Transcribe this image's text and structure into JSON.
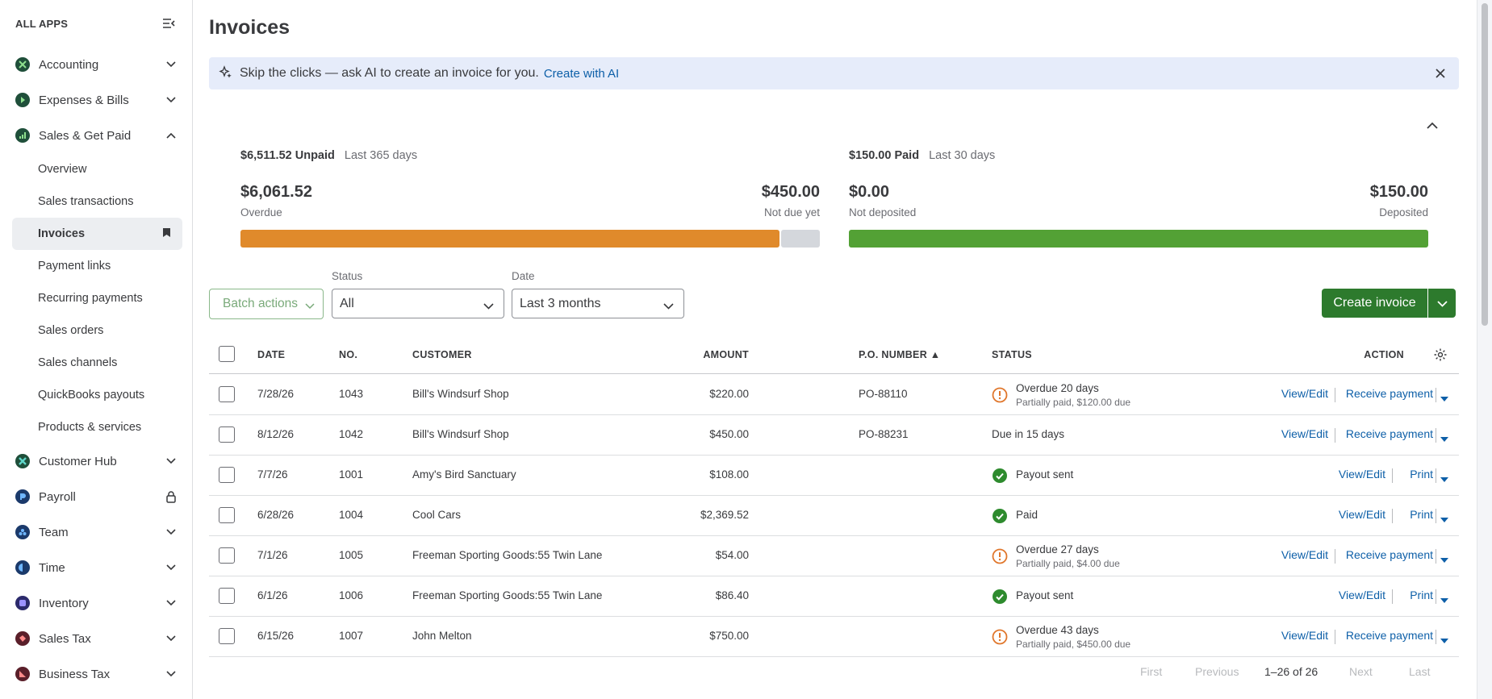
{
  "sidebar": {
    "title": "ALL APPS",
    "apps": [
      {
        "label": "Accounting",
        "icon": "accounting-icon",
        "color": "#2ca01c"
      },
      {
        "label": "Expenses & Bills",
        "icon": "expenses-icon",
        "color": "#2ca01c"
      },
      {
        "label": "Sales & Get Paid",
        "icon": "sales-icon",
        "color": "#2ca01c"
      }
    ],
    "sub_items": [
      "Overview",
      "Sales transactions",
      "Invoices",
      "Payment links",
      "Recurring payments",
      "Sales orders",
      "Sales channels",
      "QuickBooks payouts",
      "Products & services"
    ],
    "apps_after": [
      {
        "label": "Customer Hub",
        "icon": "customer-hub-icon",
        "color": "#13a89e"
      },
      {
        "label": "Payroll",
        "icon": "payroll-icon",
        "color": "#0077c5"
      },
      {
        "label": "Team",
        "icon": "team-icon",
        "color": "#0077c5"
      },
      {
        "label": "Time",
        "icon": "time-icon",
        "color": "#0077c5"
      },
      {
        "label": "Inventory",
        "icon": "inventory-icon",
        "color": "#5a4fcf"
      },
      {
        "label": "Sales Tax",
        "icon": "sales-tax-icon",
        "color": "#d52b1e"
      },
      {
        "label": "Business Tax",
        "icon": "business-tax-icon",
        "color": "#d52b1e"
      }
    ]
  },
  "page": {
    "title": "Invoices",
    "ai_banner": {
      "text": "Skip the clicks — ask AI to create an invoice for you.",
      "link": "Create with AI"
    }
  },
  "summary": {
    "unpaid": {
      "amount": "$6,511.52 Unpaid",
      "period": "Last 365 days",
      "overdue_amount": "$6,061.52",
      "overdue_label": "Overdue",
      "not_due_amount": "$450.00",
      "not_due_label": "Not due yet",
      "overdue_fraction": 0.931
    },
    "paid": {
      "amount": "$150.00 Paid",
      "period": "Last 30 days",
      "not_deposited_amount": "$0.00",
      "not_deposited_label": "Not deposited",
      "deposited_amount": "$150.00",
      "deposited_label": "Deposited",
      "deposited_fraction": 1.0
    },
    "colors": {
      "overdue": "#e08a2b",
      "not_due": "#d4d7dc",
      "deposited": "#53a135"
    }
  },
  "filters": {
    "batch_label": "Batch actions",
    "status_label": "Status",
    "status_value": "All",
    "date_label": "Date",
    "date_value": "Last 3 months",
    "create_label": "Create invoice"
  },
  "table": {
    "headers": {
      "date": "DATE",
      "no": "NO.",
      "customer": "CUSTOMER",
      "amount": "AMOUNT",
      "po": "P.O. NUMBER ▲",
      "status": "STATUS",
      "action": "ACTION"
    },
    "rows": [
      {
        "date": "7/28/26",
        "no": "1043",
        "customer": "Bill's Windsurf Shop",
        "amount": "$220.00",
        "po": "PO-88110",
        "status": "Overdue 20 days",
        "status_sub": "Partially paid, $120.00 due",
        "status_icon": "warning",
        "action1": "View/Edit",
        "action2": "Receive payment"
      },
      {
        "date": "8/12/26",
        "no": "1042",
        "customer": "Bill's Windsurf Shop",
        "amount": "$450.00",
        "po": "PO-88231",
        "status": "Due in 15 days",
        "status_sub": "",
        "status_icon": "none",
        "action1": "View/Edit",
        "action2": "Receive payment"
      },
      {
        "date": "7/7/26",
        "no": "1001",
        "customer": "Amy's Bird Sanctuary",
        "amount": "$108.00",
        "po": "",
        "status": "Payout sent",
        "status_sub": "",
        "status_icon": "check",
        "action1": "View/Edit",
        "action2": "Print"
      },
      {
        "date": "6/28/26",
        "no": "1004",
        "customer": "Cool Cars",
        "amount": "$2,369.52",
        "po": "",
        "status": "Paid",
        "status_sub": "",
        "status_icon": "check",
        "action1": "View/Edit",
        "action2": "Print"
      },
      {
        "date": "7/1/26",
        "no": "1005",
        "customer": "Freeman Sporting Goods:55 Twin Lane",
        "amount": "$54.00",
        "po": "",
        "status": "Overdue 27 days",
        "status_sub": "Partially paid, $4.00 due",
        "status_icon": "warning",
        "action1": "View/Edit",
        "action2": "Receive payment"
      },
      {
        "date": "6/1/26",
        "no": "1006",
        "customer": "Freeman Sporting Goods:55 Twin Lane",
        "amount": "$86.40",
        "po": "",
        "status": "Payout sent",
        "status_sub": "",
        "status_icon": "check",
        "action1": "View/Edit",
        "action2": "Print"
      },
      {
        "date": "6/15/26",
        "no": "1007",
        "customer": "John Melton",
        "amount": "$750.00",
        "po": "",
        "status": "Overdue 43 days",
        "status_sub": "Partially paid, $450.00 due",
        "status_icon": "warning",
        "action1": "View/Edit",
        "action2": "Receive payment"
      }
    ]
  },
  "pagination": {
    "first": "First",
    "previous": "Previous",
    "count": "1–26 of 26",
    "next": "Next",
    "last": "Last"
  }
}
